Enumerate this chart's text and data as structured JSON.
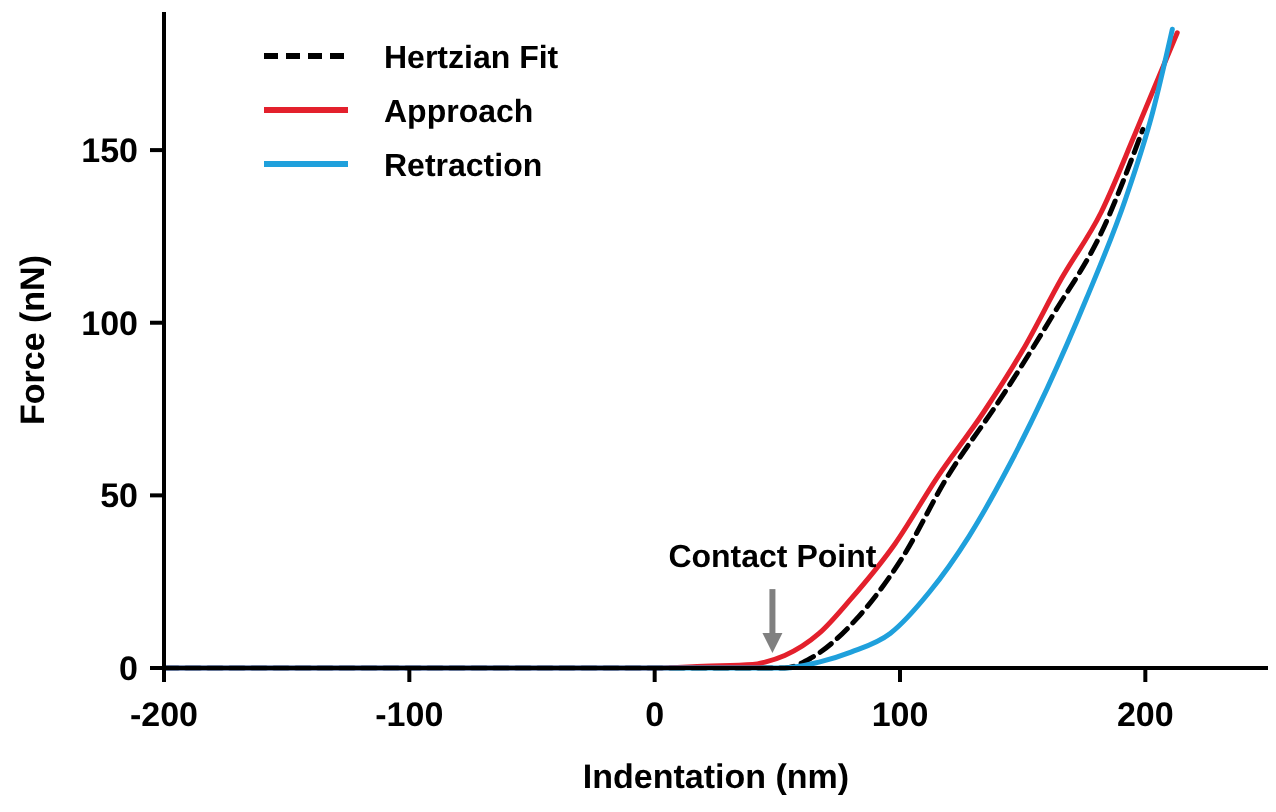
{
  "chart_data": {
    "type": "line",
    "xlabel": "Indentation (nm)",
    "ylabel": "Force (nN)",
    "xlim": [
      -200,
      250
    ],
    "ylim": [
      0,
      190
    ],
    "xticks": [
      -200,
      -100,
      0,
      100,
      200
    ],
    "yticks": [
      0,
      50,
      100,
      150
    ],
    "grid": false,
    "legend": "top left",
    "marker": "none",
    "series": [
      {
        "name": "Hertzian Fit",
        "color": "#000000",
        "line_style": "dashed",
        "x": [
          -200,
          -100,
          0,
          40,
          53,
          64,
          82,
          101,
          119,
          141,
          163,
          182,
          199
        ],
        "values": [
          0,
          0,
          0,
          0,
          0,
          3,
          14,
          32,
          55,
          78,
          103,
          126,
          156
        ]
      },
      {
        "name": "Approach",
        "color": "#e3202c",
        "line_style": "solid",
        "x": [
          -200,
          -100,
          0,
          20,
          40,
          45,
          53,
          67,
          80,
          98,
          115,
          134,
          150,
          166,
          182,
          196,
          213
        ],
        "values": [
          0,
          0,
          0,
          0.5,
          1,
          1.7,
          3.6,
          10,
          20,
          36,
          55,
          74,
          92,
          113,
          132,
          155,
          184
        ]
      },
      {
        "name": "Retraction",
        "color": "#1fa0dc",
        "line_style": "solid",
        "x": [
          -200,
          -100,
          0,
          40,
          53,
          67,
          80,
          96,
          112,
          128,
          144,
          160,
          176,
          192,
          203,
          211
        ],
        "values": [
          0,
          0,
          0,
          0,
          0,
          1.7,
          4.6,
          10,
          22,
          38,
          58,
          81,
          107,
          136,
          161,
          185
        ]
      }
    ],
    "annotations": [
      {
        "text": "Contact Point",
        "x": 48,
        "y": 2
      }
    ]
  }
}
